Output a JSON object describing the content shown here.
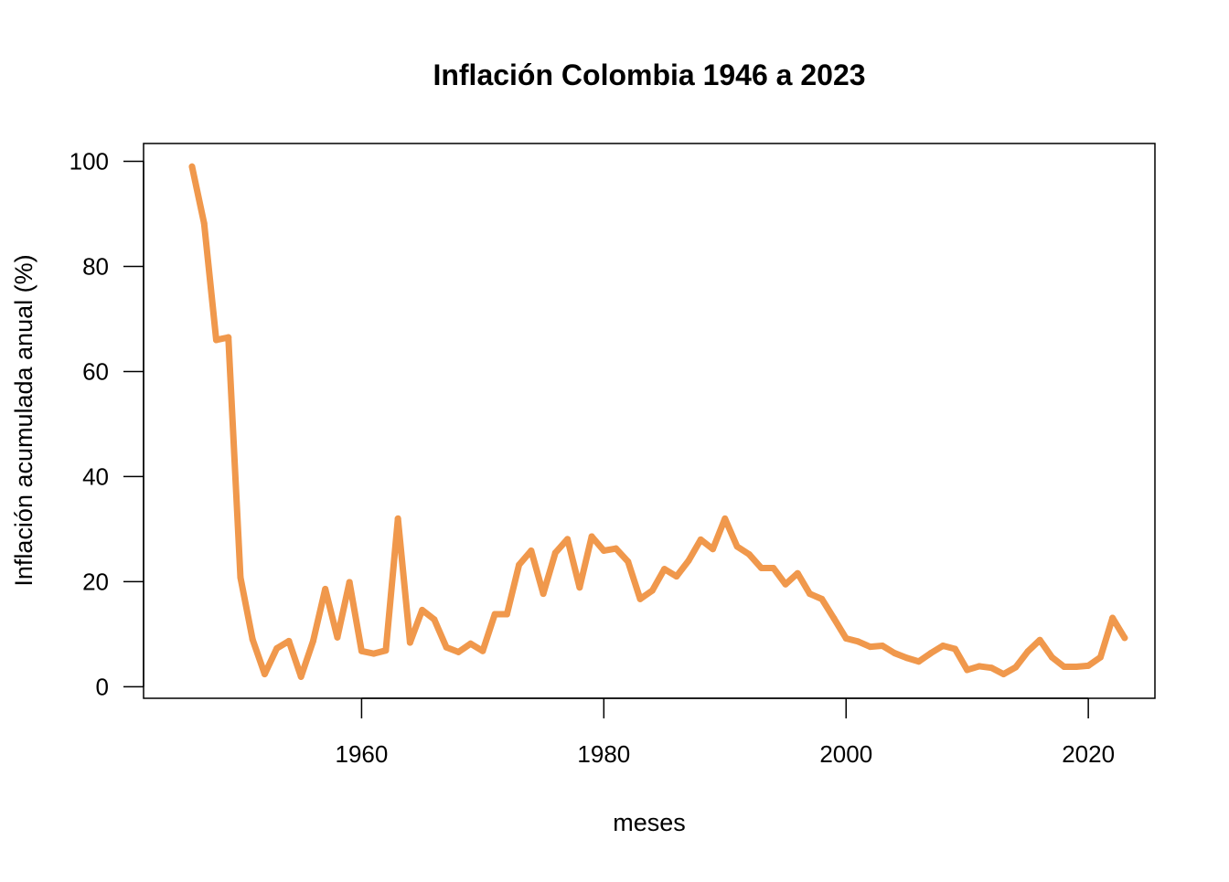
{
  "chart_data": {
    "type": "line",
    "title": "Inflación Colombia  1946 a 2023",
    "xlabel": "meses",
    "ylabel": "Inflación acumulada anual (%)",
    "xlim": [
      1942.0,
      2025.5
    ],
    "ylim": [
      -2.2,
      103.4
    ],
    "x_ticks": [
      1960,
      1980,
      2000,
      2020
    ],
    "y_ticks": [
      0,
      20,
      40,
      60,
      80,
      100
    ],
    "grid": false,
    "legend": "none",
    "line_color": "#F0984C",
    "series": [
      {
        "x": [
          1946,
          1947,
          1948,
          1949,
          1950,
          1951,
          1952,
          1953,
          1954,
          1955,
          1956,
          1957,
          1958,
          1959,
          1960,
          1961,
          1962,
          1963,
          1964,
          1965,
          1966,
          1967,
          1968,
          1969,
          1970,
          1971,
          1972,
          1973,
          1974,
          1975,
          1976,
          1977,
          1978,
          1979,
          1980,
          1981,
          1982,
          1983,
          1984,
          1985,
          1986,
          1987,
          1988,
          1989,
          1990,
          1991,
          1992,
          1993,
          1994,
          1995,
          1996,
          1997,
          1998,
          1999,
          2000,
          2001,
          2002,
          2003,
          2004,
          2005,
          2006,
          2007,
          2008,
          2009,
          2010,
          2011,
          2012,
          2013,
          2014,
          2015,
          2016,
          2017,
          2018,
          2019,
          2020,
          2021,
          2022,
          2023
        ],
        "values": [
          99.0,
          88.2,
          66.0,
          66.5,
          20.8,
          9.0,
          2.4,
          7.3,
          8.7,
          1.9,
          8.7,
          18.6,
          9.4,
          19.9,
          6.8,
          6.3,
          6.9,
          32.0,
          8.4,
          14.6,
          12.8,
          7.5,
          6.6,
          8.2,
          6.8,
          13.8,
          13.8,
          23.2,
          25.9,
          17.7,
          25.5,
          28.1,
          18.9,
          28.6,
          25.9,
          26.3,
          23.8,
          16.7,
          18.3,
          22.4,
          21.0,
          24.0,
          28.0,
          26.2,
          32.0,
          26.7,
          25.2,
          22.6,
          22.6,
          19.5,
          21.6,
          17.7,
          16.7,
          13.0,
          9.2,
          8.6,
          7.6,
          7.8,
          6.4,
          5.5,
          4.8,
          6.4,
          7.8,
          7.2,
          3.2,
          3.9,
          3.6,
          2.4,
          3.7,
          6.7,
          8.9,
          5.6,
          3.8,
          3.8,
          4.0,
          5.6,
          13.1,
          9.3
        ]
      }
    ]
  }
}
